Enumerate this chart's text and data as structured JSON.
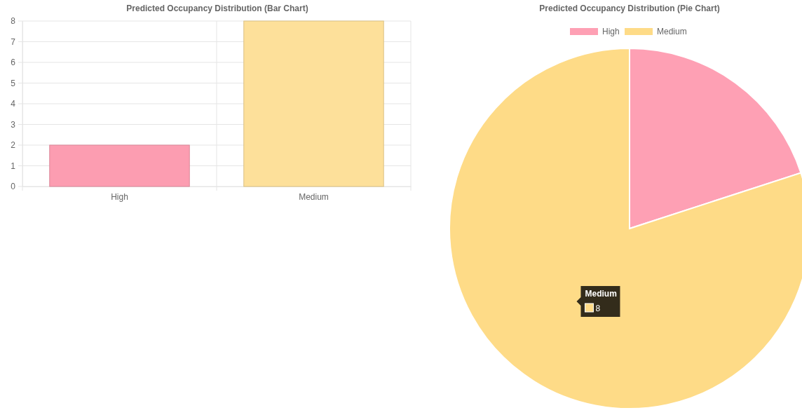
{
  "chart_data": [
    {
      "type": "bar",
      "title": "Predicted Occupancy Distribution (Bar Chart)",
      "categories": [
        "High",
        "Medium"
      ],
      "values": [
        2,
        8
      ],
      "colors": [
        "#fc9db1",
        "#fde09a"
      ],
      "ylim": [
        0,
        8
      ],
      "yticks": [
        0,
        1,
        2,
        3,
        4,
        5,
        6,
        7,
        8
      ],
      "grid": true
    },
    {
      "type": "pie",
      "title": "Predicted Occupancy Distribution (Pie Chart)",
      "categories": [
        "High",
        "Medium"
      ],
      "values": [
        2,
        8
      ],
      "colors": [
        "#fea0b4",
        "#fedb87"
      ],
      "legend": "top",
      "value_labels": [
        null,
        "8"
      ]
    }
  ]
}
